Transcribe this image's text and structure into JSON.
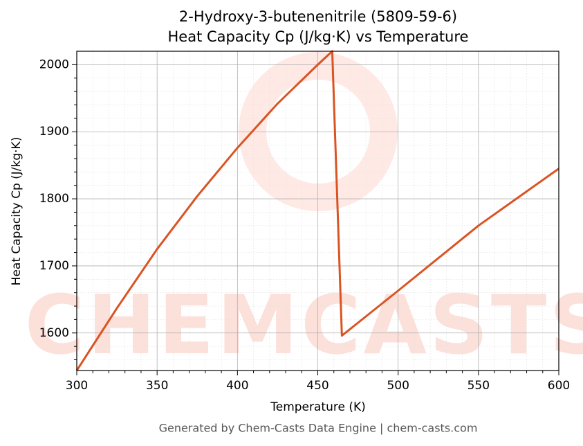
{
  "chart_data": {
    "type": "line",
    "title": "2-Hydroxy-3-butenenitrile (5809-59-6)",
    "subtitle": "Heat Capacity Cp (J/kg·K) vs Temperature",
    "x_label": "Temperature (K)",
    "y_label": "Heat Capacity Cp (J/kg·K)",
    "x": [
      300,
      325,
      350,
      375,
      400,
      425,
      450,
      459,
      465,
      500,
      550,
      600
    ],
    "series": [
      {
        "name": "Cp",
        "color": "#d95423",
        "values": [
          1544,
          1637,
          1725,
          1804,
          1876,
          1942,
          2000,
          2020,
          1596,
          1663,
          1760,
          1845
        ]
      }
    ],
    "xlim": [
      300,
      600
    ],
    "xticks": [
      300,
      350,
      400,
      450,
      500,
      550,
      600
    ],
    "ylim": [
      1544,
      2020
    ],
    "yticks": [
      1600,
      1700,
      1800,
      1900,
      2000
    ],
    "grid": true,
    "minor_grid": true,
    "watermark": "CHEMCASTS",
    "footer": "Generated by Chem-Casts Data Engine | chem-casts.com"
  }
}
